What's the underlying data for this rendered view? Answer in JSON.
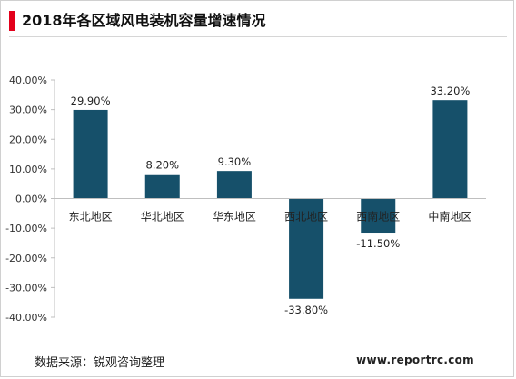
{
  "title": "2018年各区域风电装机容量增速情况",
  "source": "数据来源：锐观咨询整理",
  "website": "www.reportrc.com",
  "colors": {
    "bar": "#16506a",
    "accent": "#e3001b"
  },
  "chart_data": {
    "type": "bar",
    "title": "2018年各区域风电装机容量增速情况",
    "categories": [
      "东北地区",
      "华北地区",
      "华东地区",
      "西北地区",
      "西南地区",
      "中南地区"
    ],
    "values": [
      29.9,
      8.2,
      9.3,
      -33.8,
      -11.5,
      33.2
    ],
    "value_labels": [
      "29.90%",
      "8.20%",
      "9.30%",
      "-33.80%",
      "-11.50%",
      "33.20%"
    ],
    "yticks": [
      40,
      30,
      20,
      10,
      0,
      -10,
      -20,
      -30,
      -40
    ],
    "ytick_labels": [
      "40.00%",
      "30.00%",
      "20.00%",
      "10.00%",
      "0.00%",
      "-10.00%",
      "-20.00%",
      "-30.00%",
      "-40.00%"
    ],
    "ylim": [
      -40,
      40
    ],
    "xlabel": "",
    "ylabel": "",
    "grid": false,
    "legend": "none"
  }
}
